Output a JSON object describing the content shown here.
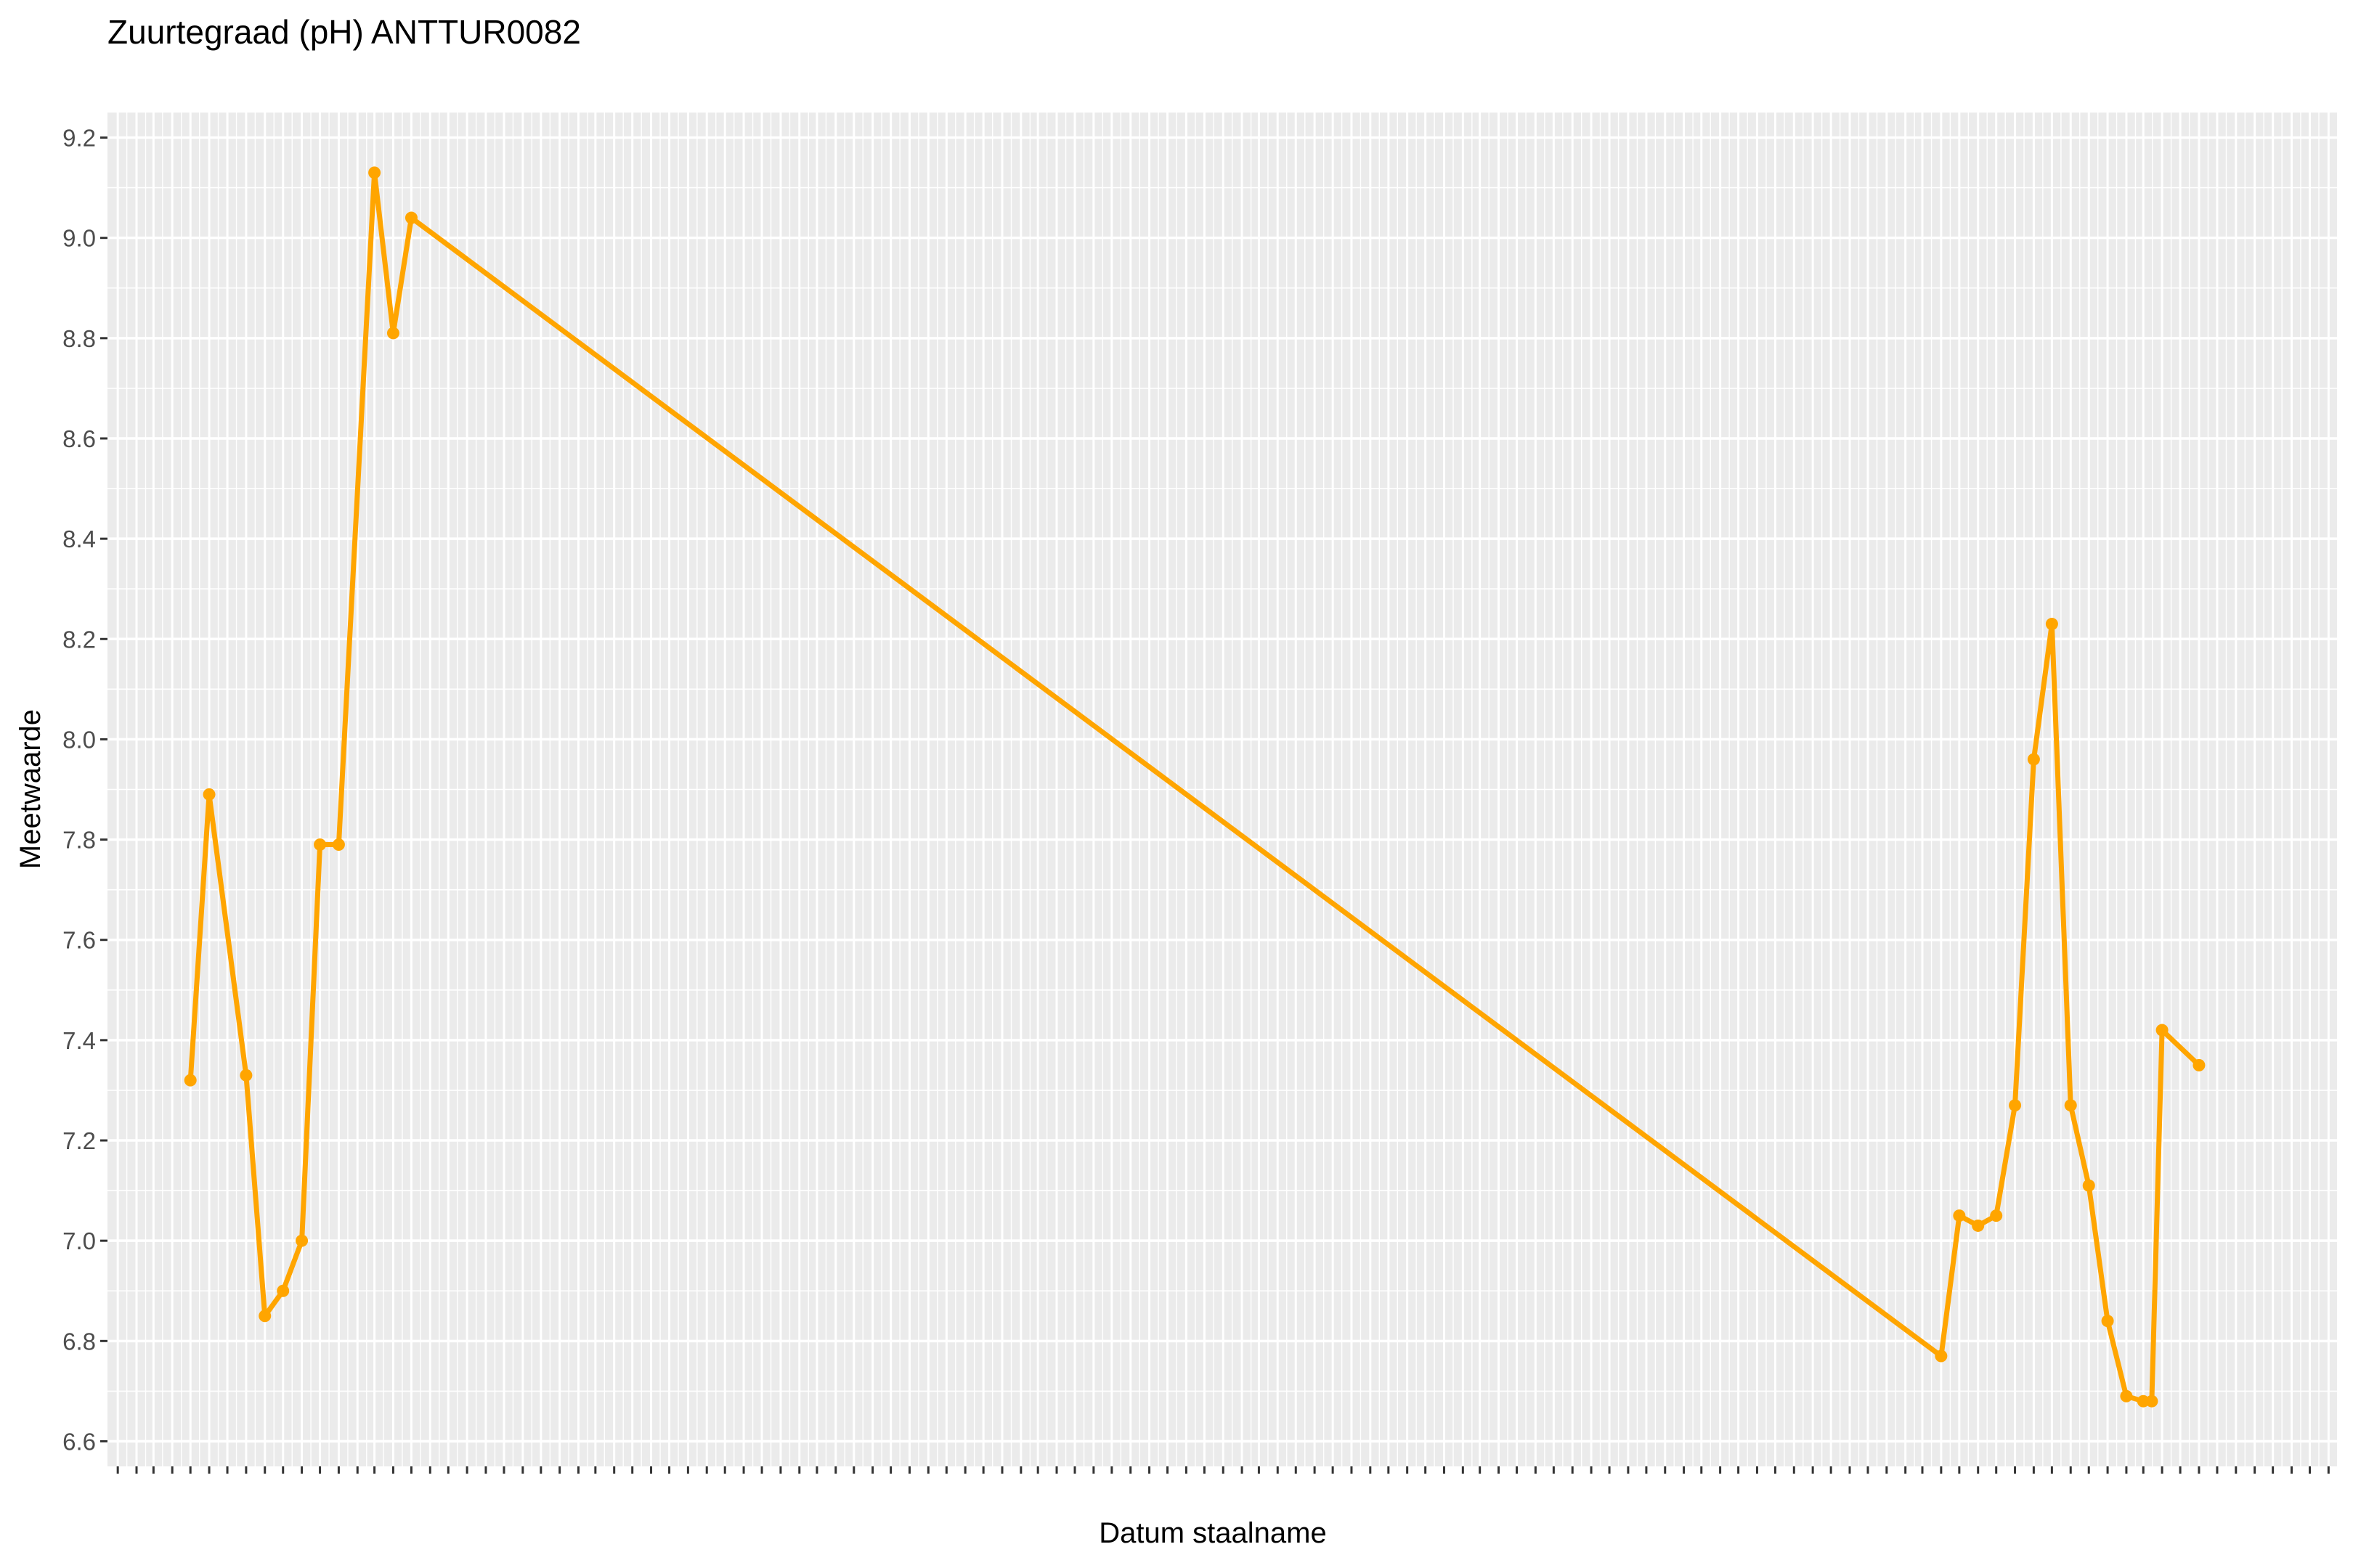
{
  "chart_data": {
    "type": "line",
    "title": "Zuurtegraad (pH) ANTTUR0082",
    "xlabel": "Datum staalname",
    "ylabel": "Meetwaarde",
    "ylim": [
      6.55,
      9.25
    ],
    "yticks": [
      6.6,
      6.8,
      7.0,
      7.2,
      7.4,
      7.6,
      7.8,
      8.0,
      8.2,
      8.4,
      8.6,
      8.8,
      9.0,
      9.2
    ],
    "ytick_labels": [
      "6.6",
      "6.8",
      "7.0",
      "7.2",
      "7.4",
      "7.6",
      "7.8",
      "8.0",
      "8.2",
      "8.4",
      "8.6",
      "8.8",
      "9.0",
      "9.2"
    ],
    "xlim": [
      "2012-12-15",
      "2023-01-15"
    ],
    "x_axis_note": "monthly ticks with overlapping unreadable month labels",
    "grid": true,
    "background": "#ebebeb",
    "line_color": "#ffa500",
    "x": [
      "2013-05-01",
      "2013-06-01",
      "2013-08-01",
      "2013-09-01",
      "2013-10-01",
      "2013-11-01",
      "2013-12-01",
      "2014-01-01",
      "2014-03-01",
      "2014-04-01",
      "2014-05-01",
      "2021-04-01",
      "2021-05-01",
      "2021-06-01",
      "2021-07-01",
      "2021-08-01",
      "2021-09-01",
      "2021-10-01",
      "2021-11-01",
      "2021-12-01",
      "2022-01-01",
      "2022-02-01",
      "2022-03-01",
      "2022-03-15",
      "2022-04-01",
      "2022-06-01"
    ],
    "y": [
      7.32,
      7.89,
      7.33,
      6.85,
      6.9,
      7.0,
      7.79,
      7.79,
      9.13,
      8.81,
      9.04,
      6.77,
      7.05,
      7.03,
      7.05,
      7.27,
      7.96,
      8.23,
      7.27,
      7.11,
      6.84,
      6.69,
      6.68,
      6.68,
      7.42,
      7.35
    ]
  }
}
